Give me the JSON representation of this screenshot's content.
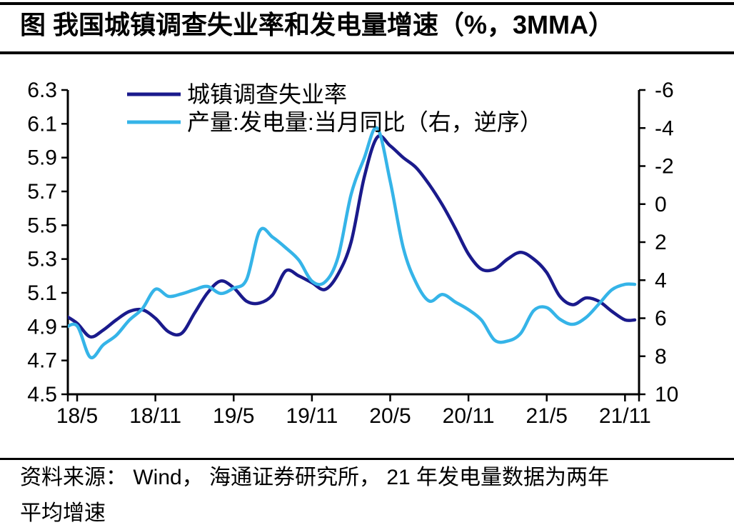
{
  "title": "图 我国城镇调查失业率和发电量增速（%，3MMA）",
  "source": {
    "line1": "资料来源： Wind， 海通证券研究所， 21 年发电量数据为两年",
    "line2": "平均增速"
  },
  "colors": {
    "unemployment_line": "#1A1A8C",
    "power_line": "#35B4E8",
    "axis": "#000000",
    "background": "#FFFFFF"
  },
  "chart_data": {
    "type": "line",
    "title": "图 我国城镇调查失业率和发电量增速（%，3MMA）",
    "x": [
      "18/4",
      "18/5",
      "18/6",
      "18/7",
      "18/8",
      "18/9",
      "18/10",
      "18/11",
      "18/12",
      "19/1",
      "19/2",
      "19/3",
      "19/4",
      "19/5",
      "19/6",
      "19/7",
      "19/8",
      "19/9",
      "19/10",
      "19/11",
      "19/12",
      "20/1",
      "20/2",
      "20/3",
      "20/4",
      "20/5",
      "20/6",
      "20/7",
      "20/8",
      "20/9",
      "20/10",
      "20/11",
      "20/12",
      "21/1",
      "21/2",
      "21/3",
      "21/4",
      "21/5",
      "21/6",
      "21/7",
      "21/8",
      "21/9",
      "21/10",
      "21/11"
    ],
    "series": [
      {
        "name": "城镇调查失业率",
        "axis": "left",
        "color_key": "unemployment_line",
        "values": [
          4.97,
          4.92,
          4.84,
          4.88,
          4.94,
          4.99,
          5.0,
          4.95,
          4.87,
          4.86,
          4.98,
          5.1,
          5.17,
          5.13,
          5.05,
          5.04,
          5.09,
          5.23,
          5.2,
          5.16,
          5.12,
          5.21,
          5.4,
          5.78,
          6.02,
          5.97,
          5.9,
          5.84,
          5.74,
          5.62,
          5.48,
          5.33,
          5.24,
          5.24,
          5.3,
          5.34,
          5.3,
          5.22,
          5.08,
          5.03,
          5.07,
          5.05,
          4.99,
          4.94
        ]
      },
      {
        "name": "产量:发电量:当月同比（右，逆序）",
        "axis": "right",
        "color_key": "power_line",
        "values": [
          6.55,
          6.4,
          8.05,
          7.4,
          6.9,
          6.1,
          5.5,
          4.48,
          4.85,
          4.72,
          4.5,
          4.33,
          4.7,
          4.42,
          3.95,
          1.4,
          1.75,
          2.3,
          2.95,
          4.05,
          4.1,
          2.8,
          -0.5,
          -2.4,
          -4.0,
          -1.2,
          2.3,
          4.15,
          5.1,
          4.75,
          5.15,
          5.55,
          6.1,
          7.15,
          7.2,
          6.8,
          5.6,
          5.44,
          6.05,
          6.32,
          5.97,
          5.25,
          4.5,
          4.22
        ]
      }
    ],
    "left_axis": {
      "min": 4.5,
      "max": 6.3,
      "reversed": false,
      "ticks": [
        "6.3",
        "6.1",
        "5.9",
        "5.7",
        "5.5",
        "5.3",
        "5.1",
        "4.9",
        "4.7",
        "4.5"
      ]
    },
    "right_axis": {
      "min": -6,
      "max": 10,
      "reversed": true,
      "ticks": [
        "-6",
        "-4",
        "-2",
        "0",
        "2",
        "4",
        "6",
        "8",
        "10"
      ]
    },
    "x_ticks": [
      "18/5",
      "18/11",
      "19/5",
      "19/11",
      "20/5",
      "20/11",
      "21/5",
      "21/11"
    ],
    "grid": "off",
    "legend_position": "top-left-inside"
  }
}
